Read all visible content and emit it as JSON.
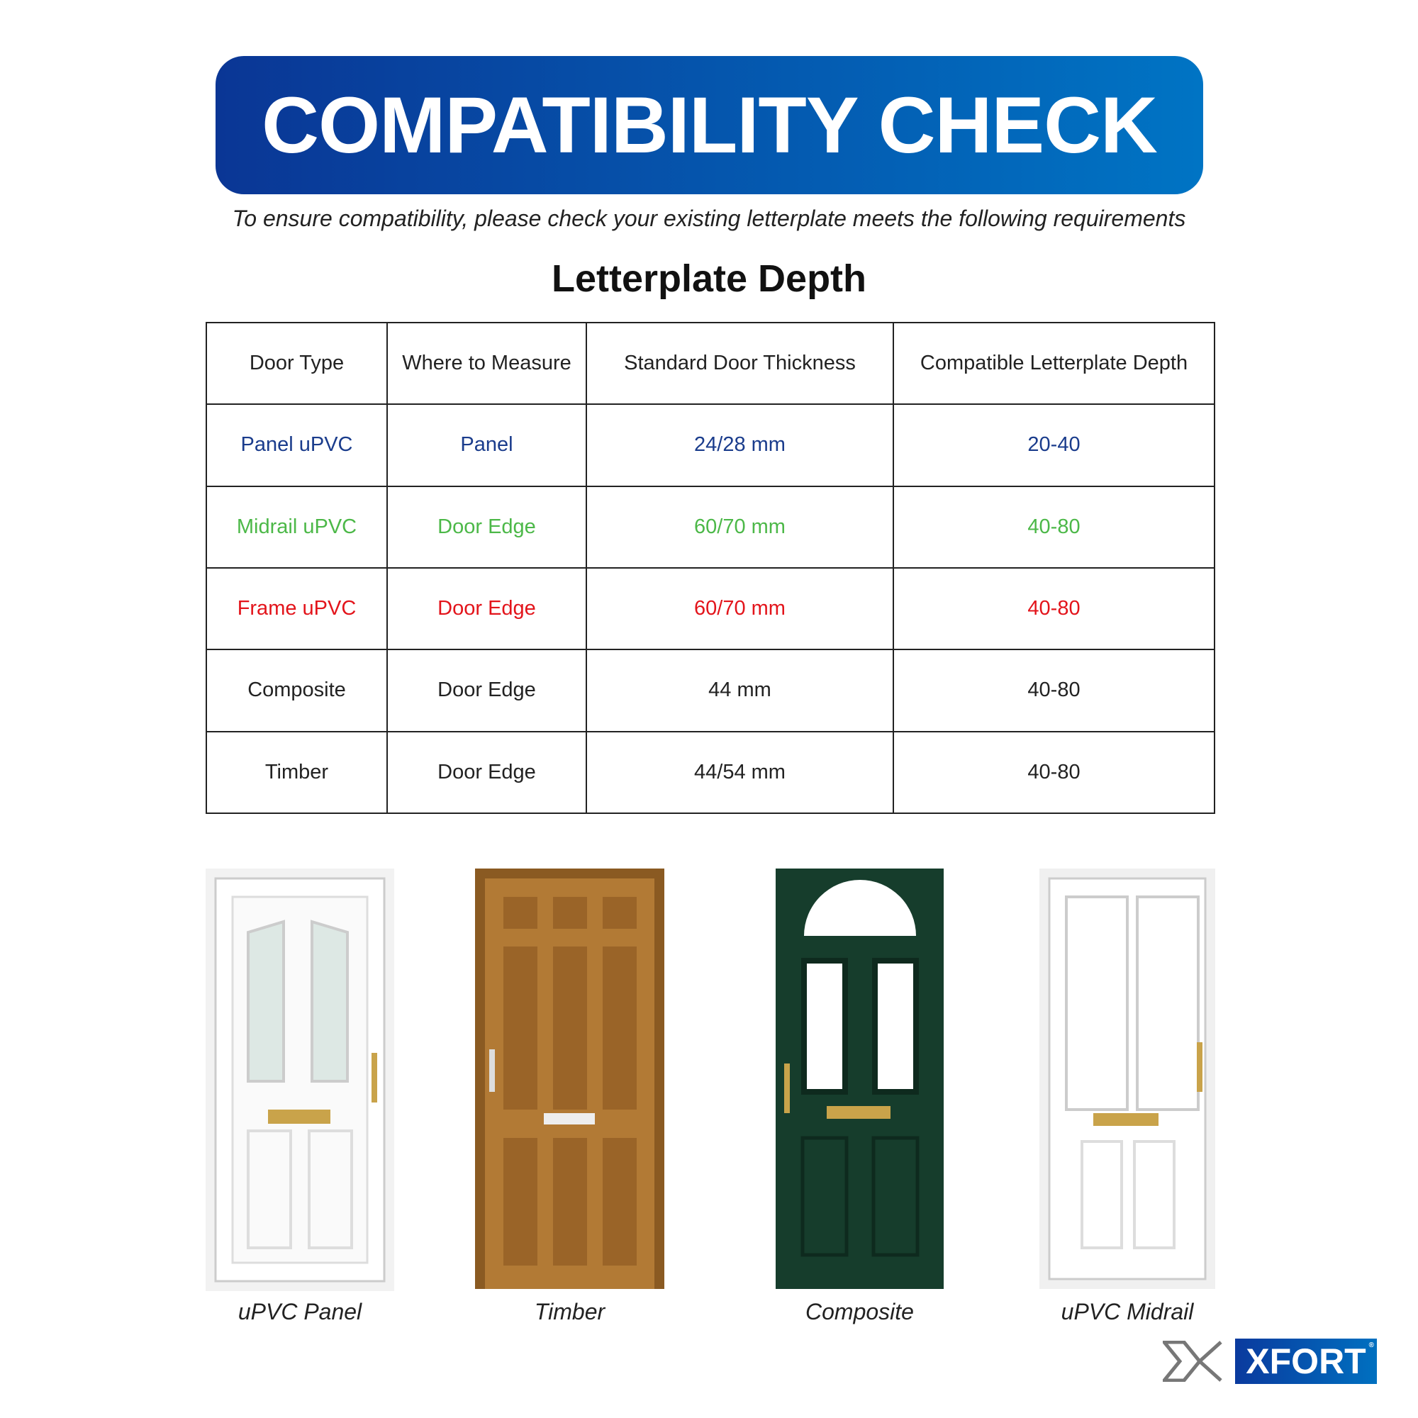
{
  "banner": {
    "title": "COMPATIBILITY CHECK",
    "gradient": [
      "#0a3695",
      "#0074c4"
    ]
  },
  "subtitle": "To ensure compatibility, please check your existing letterplate meets the following requirements",
  "section_title": "Letterplate Depth",
  "table": {
    "headers": [
      "Door Type",
      "Where to Measure",
      "Standard Door Thickness",
      "Compatible Letterplate Depth"
    ],
    "rows": [
      {
        "color": "#1a3c8c",
        "cells": [
          "Panel uPVC",
          "Panel",
          "24/28 mm",
          "20-40"
        ]
      },
      {
        "color": "#4cb848",
        "cells": [
          "Midrail uPVC",
          "Door Edge",
          "60/70 mm",
          "40-80"
        ]
      },
      {
        "color": "#e3141b",
        "cells": [
          "Frame uPVC",
          "Door Edge",
          "60/70 mm",
          "40-80"
        ]
      },
      {
        "color": "#222222",
        "cells": [
          "Composite",
          "Door Edge",
          "44 mm",
          "40-80"
        ]
      },
      {
        "color": "#222222",
        "cells": [
          "Timber",
          "Door Edge",
          "44/54 mm",
          "40-80"
        ]
      }
    ]
  },
  "doors": [
    "uPVC Panel",
    "Timber",
    "Composite",
    "uPVC Midrail"
  ],
  "logo": {
    "text": "XFORT",
    "mark": "®"
  }
}
